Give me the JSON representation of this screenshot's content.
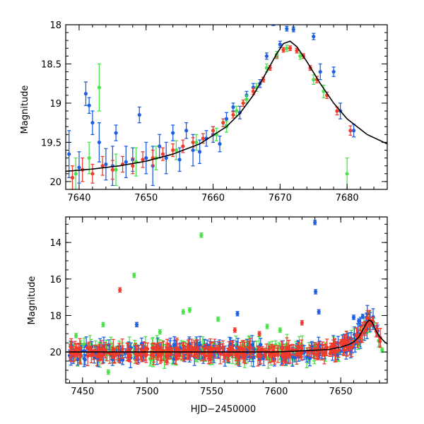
{
  "colors": {
    "blue": "#1f5fe0",
    "red": "#ef3b2c",
    "green": "#4ee04e",
    "model": "#000000"
  },
  "chart_data": [
    {
      "type": "scatter",
      "panel": "top",
      "xlabel": "",
      "ylabel": "Magnitude",
      "xlim": [
        7638,
        7686
      ],
      "ylim": [
        20.1,
        18.0
      ],
      "y_inverted": true,
      "xticks": [
        7640,
        7650,
        7660,
        7670,
        7680
      ],
      "yticks": [
        18,
        18.5,
        19,
        19.5,
        20
      ],
      "ytick_labels": [
        "18",
        "18.5",
        "19",
        "19.5",
        "20"
      ],
      "model_curve": {
        "x": [
          7638,
          7642,
          7646,
          7650,
          7654,
          7658,
          7662,
          7664,
          7666,
          7668,
          7669.5,
          7670.5,
          7671.5,
          7672.5,
          7674,
          7676,
          7678,
          7680,
          7683,
          7686
        ],
        "y": [
          19.87,
          19.84,
          19.8,
          19.74,
          19.65,
          19.52,
          19.3,
          19.13,
          18.9,
          18.6,
          18.37,
          18.24,
          18.21,
          18.28,
          18.47,
          18.75,
          19.0,
          19.2,
          19.4,
          19.52
        ]
      },
      "series": [
        {
          "color": "blue",
          "x": [
            7638.5,
            7640,
            7641,
            7641.5,
            7642,
            7643,
            7644,
            7645,
            7645.5,
            7647,
            7648,
            7649,
            7650,
            7651,
            7652,
            7653,
            7654,
            7655,
            7656,
            7657,
            7658,
            7659,
            7660,
            7661,
            7662,
            7663,
            7664,
            7665,
            7666,
            7667,
            7668,
            7669,
            7670,
            7671,
            7672,
            7675,
            7676,
            7678,
            7679,
            7681
          ],
          "y": [
            19.65,
            19.82,
            18.88,
            19.03,
            19.25,
            19.5,
            19.78,
            19.8,
            19.38,
            19.75,
            19.72,
            19.15,
            19.7,
            19.8,
            19.55,
            19.7,
            19.38,
            19.72,
            19.35,
            19.6,
            19.62,
            19.45,
            19.4,
            19.52,
            19.2,
            19.05,
            19.12,
            18.9,
            18.8,
            18.75,
            18.4,
            17.98,
            18.25,
            18.05,
            18.06,
            18.15,
            18.6,
            18.6,
            19.1,
            19.35
          ],
          "err": [
            0.3,
            0.2,
            0.15,
            0.1,
            0.15,
            0.25,
            0.2,
            0.25,
            0.1,
            0.2,
            0.15,
            0.1,
            0.2,
            0.25,
            0.15,
            0.2,
            0.1,
            0.15,
            0.1,
            0.2,
            0.15,
            0.1,
            0.1,
            0.1,
            0.08,
            0.05,
            0.08,
            0.05,
            0.05,
            0.05,
            0.04,
            0.03,
            0.04,
            0.03,
            0.03,
            0.04,
            0.1,
            0.06,
            0.1,
            0.08
          ]
        },
        {
          "color": "red",
          "x": [
            7639,
            7640.5,
            7642,
            7643.5,
            7645,
            7646.5,
            7648,
            7649.5,
            7651,
            7652.5,
            7654,
            7655.5,
            7657,
            7658.5,
            7660,
            7661.5,
            7663,
            7664.5,
            7666,
            7667.5,
            7668.5,
            7669.5,
            7670.5,
            7671.5,
            7672.5,
            7673.5,
            7674.5,
            7675.5,
            7677,
            7678.5,
            7680.5
          ],
          "y": [
            19.95,
            19.85,
            19.9,
            19.8,
            19.85,
            19.78,
            19.8,
            19.72,
            19.7,
            19.65,
            19.6,
            19.55,
            19.5,
            19.45,
            19.35,
            19.25,
            19.15,
            19.0,
            18.85,
            18.7,
            18.55,
            18.4,
            18.32,
            18.3,
            18.33,
            18.4,
            18.55,
            18.7,
            18.9,
            19.1,
            19.35
          ],
          "err": [
            0.15,
            0.15,
            0.12,
            0.12,
            0.12,
            0.1,
            0.1,
            0.1,
            0.1,
            0.08,
            0.08,
            0.08,
            0.06,
            0.06,
            0.05,
            0.05,
            0.04,
            0.04,
            0.04,
            0.03,
            0.03,
            0.03,
            0.03,
            0.03,
            0.03,
            0.03,
            0.03,
            0.04,
            0.04,
            0.05,
            0.06
          ]
        },
        {
          "color": "green",
          "x": [
            7639.5,
            7641.5,
            7643,
            7645.5,
            7648.5,
            7651.5,
            7654.5,
            7657.5,
            7660.5,
            7662,
            7663.5,
            7665,
            7666.5,
            7668,
            7669.5,
            7671,
            7673,
            7675,
            7676.5,
            7680
          ],
          "y": [
            19.9,
            19.7,
            18.8,
            19.85,
            19.75,
            19.7,
            19.6,
            19.5,
            19.4,
            19.3,
            19.1,
            18.95,
            18.8,
            18.55,
            18.38,
            18.3,
            18.4,
            18.7,
            18.85,
            19.9
          ],
          "err": [
            0.2,
            0.2,
            0.3,
            0.2,
            0.18,
            0.15,
            0.12,
            0.1,
            0.08,
            0.07,
            0.06,
            0.05,
            0.05,
            0.05,
            0.04,
            0.04,
            0.04,
            0.06,
            0.08,
            0.2
          ]
        }
      ]
    },
    {
      "type": "scatter",
      "panel": "bottom",
      "xlabel": "HJD−2450000",
      "ylabel": "Magnitude",
      "xlim": [
        7437,
        7686
      ],
      "ylim": [
        21.7,
        12.6
      ],
      "y_inverted": true,
      "xticks": [
        7450,
        7500,
        7550,
        7600,
        7650
      ],
      "yticks": [
        14,
        16,
        18,
        20
      ],
      "ytick_labels": [
        "14",
        "16",
        "18",
        "20"
      ],
      "baseline_mag": 20.0,
      "outliers": {
        "blue": {
          "x": [
            7630,
            7630.5,
            7633,
            7570,
            7660,
            7664,
            7667,
            7492
          ],
          "y": [
            12.9,
            16.7,
            17.8,
            17.9,
            18.1,
            18.3,
            18.05,
            18.5
          ]
        },
        "red": {
          "x": [
            7479,
            7620,
            7568,
            7587
          ],
          "y": [
            16.6,
            18.4,
            18.8,
            19.0
          ]
        },
        "green": {
          "x": [
            7542,
            7490,
            7533,
            7528,
            7466,
            7445,
            7510,
            7555,
            7593,
            7603,
            7682,
            7470
          ],
          "y": [
            13.6,
            15.8,
            17.7,
            17.8,
            18.5,
            19.1,
            18.9,
            18.2,
            18.6,
            18.8,
            19.9,
            21.1
          ]
        }
      },
      "model_curve": {
        "x": [
          7437,
          7600,
          7640,
          7650,
          7656,
          7660,
          7664,
          7667,
          7670,
          7672,
          7674,
          7677,
          7680,
          7684,
          7686
        ],
        "y": [
          20.0,
          20.0,
          19.87,
          19.73,
          19.6,
          19.45,
          19.18,
          18.8,
          18.4,
          18.25,
          18.33,
          18.8,
          19.15,
          19.45,
          19.55
        ]
      }
    }
  ]
}
